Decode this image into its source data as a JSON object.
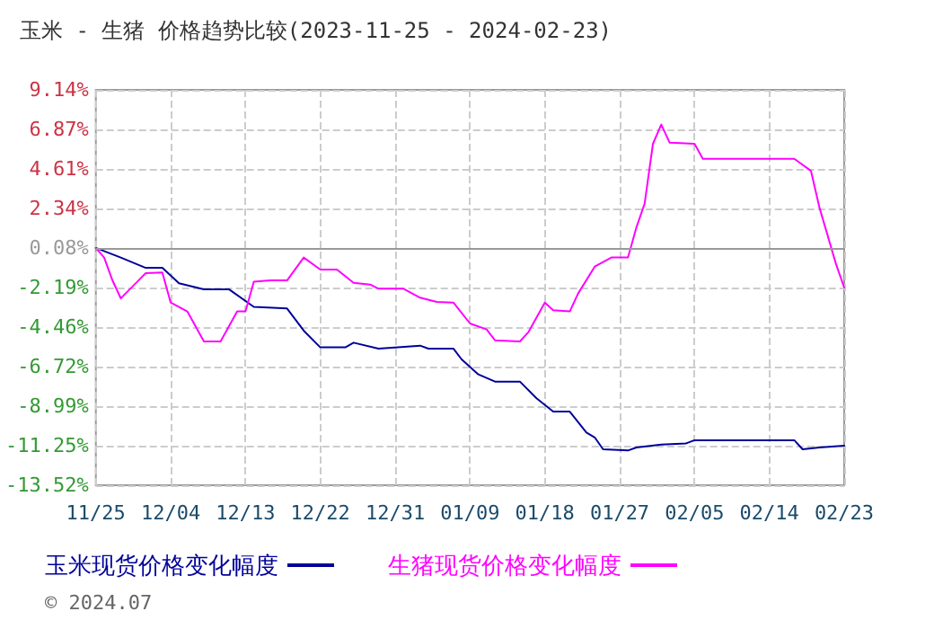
{
  "chart_data": {
    "type": "line",
    "title": "玉米 - 生猪 价格趋势比较(2023-11-25 - 2024-02-23)",
    "xlim": [
      "2023-11-25",
      "2024-02-23"
    ],
    "xticks": [
      {
        "value": "2023-11-25",
        "label": "11/25"
      },
      {
        "value": "2023-12-04",
        "label": "12/04"
      },
      {
        "value": "2023-12-13",
        "label": "12/13"
      },
      {
        "value": "2023-12-22",
        "label": "12/22"
      },
      {
        "value": "2023-12-31",
        "label": "12/31"
      },
      {
        "value": "2024-01-09",
        "label": "01/09"
      },
      {
        "value": "2024-01-18",
        "label": "01/18"
      },
      {
        "value": "2024-01-27",
        "label": "01/27"
      },
      {
        "value": "2024-02-05",
        "label": "02/05"
      },
      {
        "value": "2024-02-14",
        "label": "02/14"
      },
      {
        "value": "2024-02-23",
        "label": "02/23"
      }
    ],
    "ylim": [
      -13.52,
      9.14
    ],
    "yticks": [
      {
        "value": 9.14,
        "label": "9.14%"
      },
      {
        "value": 6.87,
        "label": "6.87%"
      },
      {
        "value": 4.61,
        "label": "4.61%"
      },
      {
        "value": 2.34,
        "label": "2.34%"
      },
      {
        "value": 0.08,
        "label": "0.08%"
      },
      {
        "value": -2.19,
        "label": "-2.19%"
      },
      {
        "value": -4.46,
        "label": "-4.46%"
      },
      {
        "value": -6.72,
        "label": "-6.72%"
      },
      {
        "value": -8.99,
        "label": "-8.99%"
      },
      {
        "value": -11.25,
        "label": "-11.25%"
      },
      {
        "value": -13.52,
        "label": "-13.52%"
      }
    ],
    "grid": true,
    "legend": "bottom",
    "marker": "none",
    "line_style": "solid",
    "ref_lines": [
      {
        "axis": "y",
        "value": 0.08,
        "color": "#999999"
      }
    ],
    "annotations": [
      "© 2024.07"
    ],
    "series": [
      {
        "name": "玉米现货价格变化幅度",
        "color": "#000099",
        "x": [
          "2023-11-25",
          "2023-11-28",
          "2023-12-01",
          "2023-12-03",
          "2023-12-05",
          "2023-12-08",
          "2023-12-11",
          "2023-12-14",
          "2023-12-18",
          "2023-12-20",
          "2023-12-22",
          "2023-12-25",
          "2023-12-26",
          "2023-12-29",
          "2024-01-03",
          "2024-01-04",
          "2024-01-07",
          "2024-01-08",
          "2024-01-10",
          "2024-01-12",
          "2024-01-15",
          "2024-01-17",
          "2024-01-19",
          "2024-01-21",
          "2024-01-23",
          "2024-01-24",
          "2024-01-25",
          "2024-01-28",
          "2024-01-29",
          "2024-02-01",
          "2024-02-04",
          "2024-02-05",
          "2024-02-17",
          "2024-02-18",
          "2024-02-20",
          "2024-02-23"
        ],
        "values": [
          0.08,
          -0.47,
          -1.06,
          -1.06,
          -1.95,
          -2.29,
          -2.29,
          -3.3,
          -3.39,
          -4.66,
          -5.62,
          -5.62,
          -5.35,
          -5.69,
          -5.52,
          -5.69,
          -5.69,
          -6.31,
          -7.17,
          -7.58,
          -7.58,
          -8.54,
          -9.3,
          -9.3,
          -10.5,
          -10.78,
          -11.46,
          -11.53,
          -11.36,
          -11.19,
          -11.12,
          -10.94,
          -10.94,
          -11.46,
          -11.36,
          -11.26
        ]
      },
      {
        "name": "生猪现货价格变化幅度",
        "color": "#ff00ff",
        "x": [
          "2023-11-25",
          "2023-11-26",
          "2023-11-27",
          "2023-11-28",
          "2023-11-30",
          "2023-12-01",
          "2023-12-03",
          "2023-12-04",
          "2023-12-06",
          "2023-12-08",
          "2023-12-10",
          "2023-12-12",
          "2023-12-13",
          "2023-12-14",
          "2023-12-16",
          "2023-12-18",
          "2023-12-20",
          "2023-12-22",
          "2023-12-24",
          "2023-12-26",
          "2023-12-28",
          "2023-12-29",
          "2024-01-01",
          "2024-01-03",
          "2024-01-05",
          "2024-01-07",
          "2024-01-09",
          "2024-01-11",
          "2024-01-12",
          "2024-01-15",
          "2024-01-16",
          "2024-01-18",
          "2024-01-19",
          "2024-01-21",
          "2024-01-22",
          "2024-01-24",
          "2024-01-26",
          "2024-01-28",
          "2024-01-29",
          "2024-01-30",
          "2024-01-31",
          "2024-02-01",
          "2024-02-02",
          "2024-02-05",
          "2024-02-06",
          "2024-02-17",
          "2024-02-19",
          "2024-02-20",
          "2024-02-22",
          "2024-02-23"
        ],
        "values": [
          0.08,
          -0.47,
          -1.78,
          -2.81,
          -1.85,
          -1.37,
          -1.33,
          -3.05,
          -3.56,
          -5.28,
          -5.28,
          -3.56,
          -3.56,
          -1.85,
          -1.78,
          -1.78,
          -0.47,
          -1.16,
          -1.16,
          -1.92,
          -2.02,
          -2.26,
          -2.26,
          -2.77,
          -3.01,
          -3.05,
          -4.25,
          -4.59,
          -5.21,
          -5.28,
          -4.76,
          -3.05,
          -3.49,
          -3.56,
          -2.53,
          -0.99,
          -0.47,
          -0.47,
          1.24,
          2.62,
          6.05,
          7.15,
          6.12,
          6.05,
          5.19,
          5.19,
          4.5,
          2.44,
          -0.82,
          -2.19
        ]
      }
    ]
  }
}
